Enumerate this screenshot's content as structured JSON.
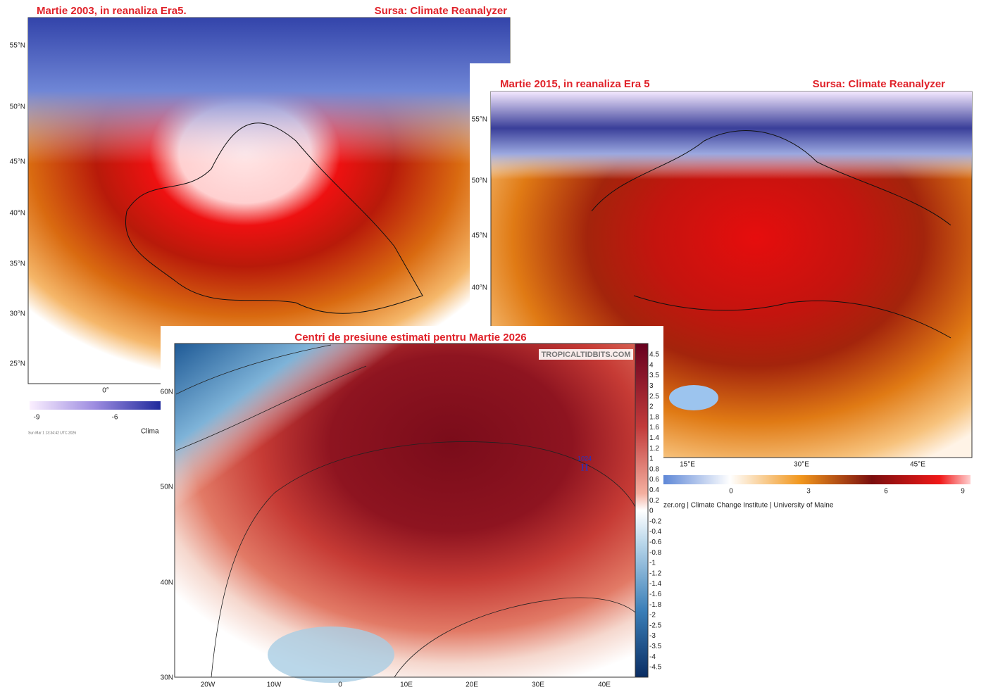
{
  "panels": [
    {
      "title": "Martie 2003, in reanaliza Era5.",
      "source": "Sursa: Climate Reanalyzer",
      "lat_labels": [
        "55°N",
        "50°N",
        "45°N",
        "40°N",
        "35°N",
        "30°N",
        "25°N"
      ],
      "lon_labels": [
        "0°"
      ],
      "colorbar_labels": [
        "-9",
        "-6"
      ],
      "footer": "Clima",
      "timestamp": "Sun Mar  1 13:34:42 UTC 2026"
    },
    {
      "title": "Martie 2015, in reanaliza Era 5",
      "source": "Sursa: Climate Reanalyzer",
      "lat_labels": [
        "55°N",
        "50°N",
        "45°N",
        "40°N"
      ],
      "lon_labels": [
        "15°E",
        "30°E",
        "45°E"
      ],
      "colorbar_labels": [
        "0",
        "3",
        "6",
        "9"
      ],
      "footer": "zer.org | Climate Change Institute | University of Maine"
    },
    {
      "title": "Centri de presiune estimati pentru Martie 2026",
      "watermark": "TROPICALTIDBITS.COM",
      "high_value": "1024",
      "high_letter": "H",
      "lat_labels": [
        "60N",
        "50N",
        "40N",
        "30N"
      ],
      "lon_labels": [
        "20W",
        "10W",
        "0",
        "10E",
        "20E",
        "30E",
        "40E"
      ],
      "colorbar_labels": [
        "4.5",
        "4",
        "3.5",
        "3",
        "2.5",
        "2",
        "1.8",
        "1.6",
        "1.4",
        "1.2",
        "1",
        "0.8",
        "0.6",
        "0.4",
        "0.2",
        "0",
        "-0.2",
        "-0.4",
        "-0.6",
        "-0.8",
        "-1",
        "-1.2",
        "-1.4",
        "-1.6",
        "-1.8",
        "-2",
        "-2.5",
        "-3",
        "-3.5",
        "-4",
        "-4.5"
      ]
    }
  ]
}
